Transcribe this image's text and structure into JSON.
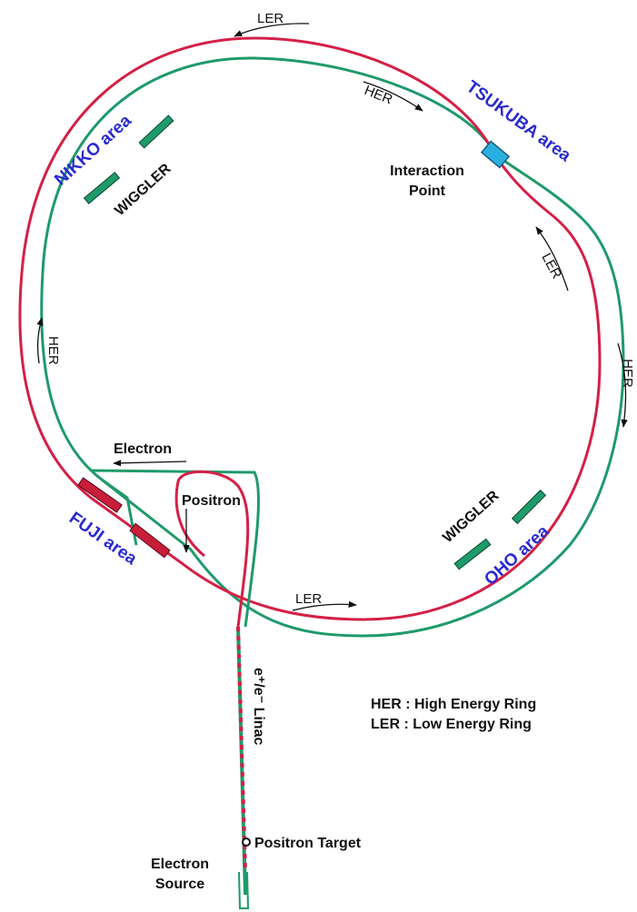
{
  "areas": {
    "tsukuba": "TSUKUBA area",
    "nikko": "NIKKO area",
    "fuji": "FUJI area",
    "oho": "OHO area"
  },
  "interaction_point": [
    "Interaction",
    "Point"
  ],
  "wigglers": [
    "WIGGLER",
    "WIGGLER"
  ],
  "directions": {
    "ler_top": "LER",
    "her_top": "HER",
    "ler_right": "LER",
    "her_right": "HER",
    "her_left": "HER",
    "ler_bottom": "LER"
  },
  "injection": {
    "electron": "Electron",
    "positron": "Positron",
    "linac": "e⁺/e⁻ Linac",
    "positron_target": "Positron Target",
    "electron_source": [
      "Electron",
      "Source"
    ]
  },
  "legend": [
    "HER : High Energy Ring",
    "LER : Low Energy Ring"
  ]
}
